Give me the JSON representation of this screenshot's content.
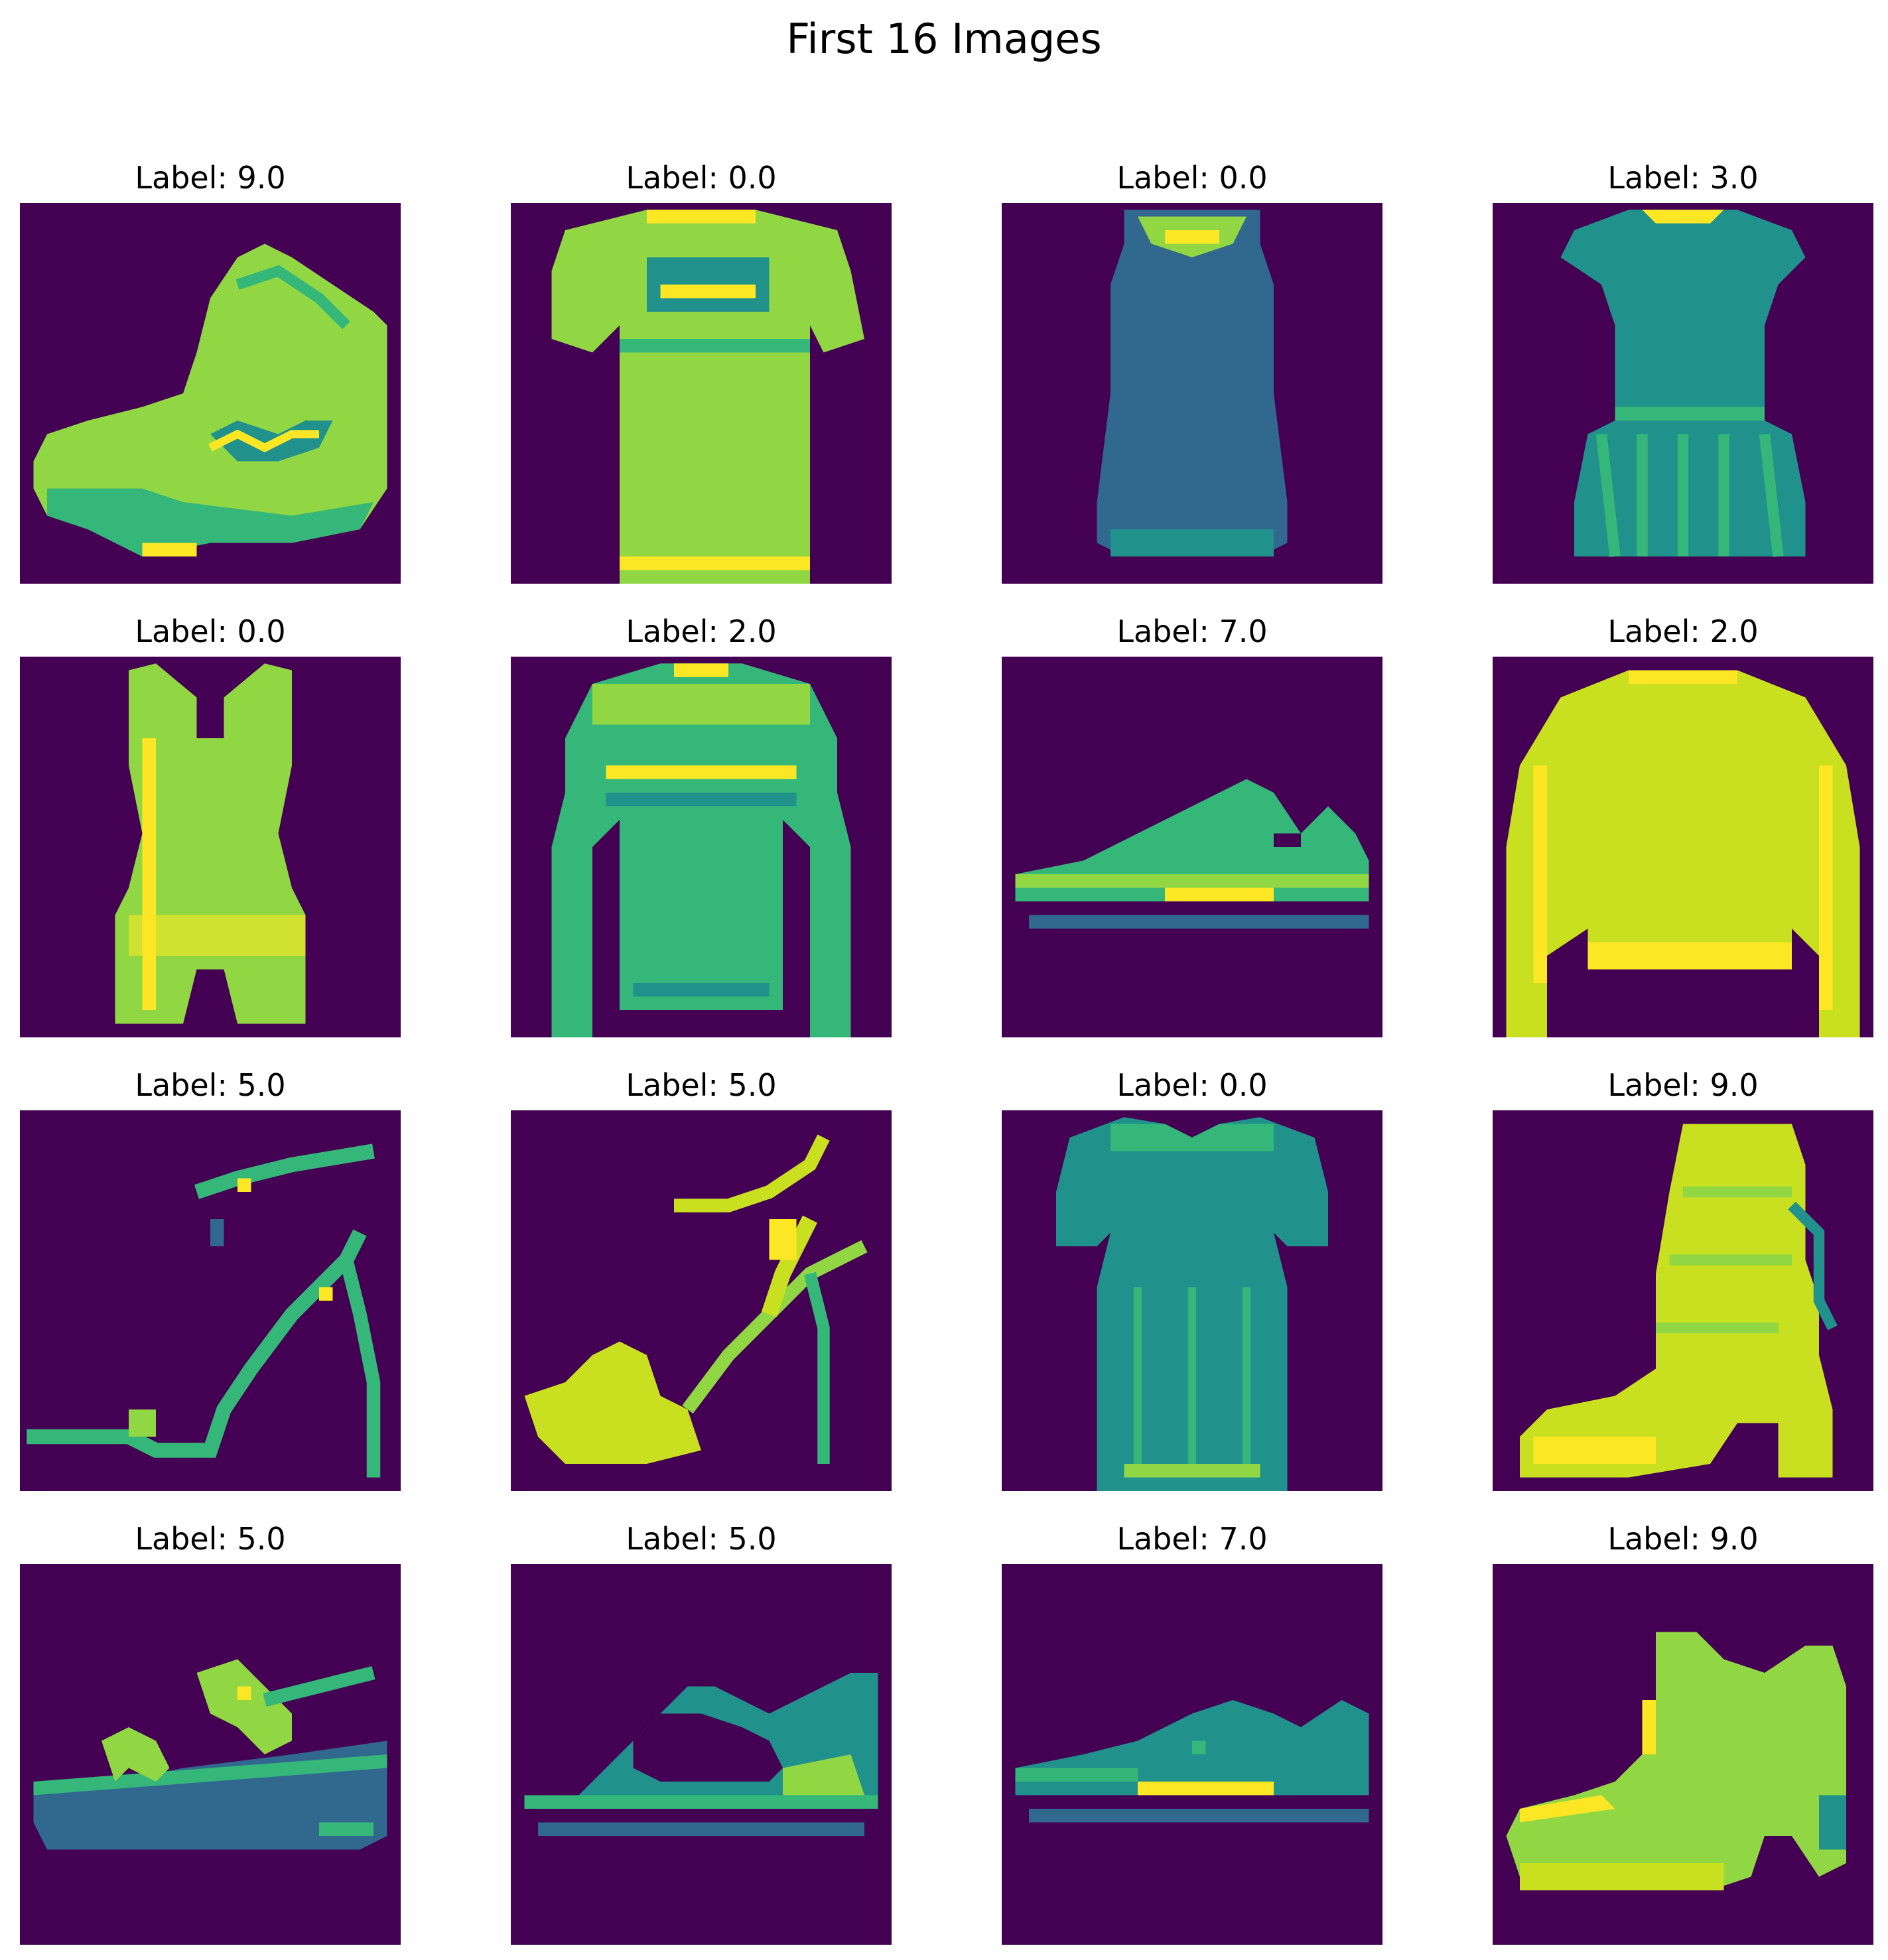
{
  "figure": {
    "title": "First 16 Images"
  },
  "colors": {
    "background": "#440154",
    "dark_teal": "#31688e",
    "teal": "#21918c",
    "green": "#35b779",
    "light_green": "#90d743",
    "yellow": "#fde725"
  },
  "panels": [
    {
      "label": "Label: 9.0",
      "depicts": "ankle boot"
    },
    {
      "label": "Label: 0.0",
      "depicts": "t-shirt"
    },
    {
      "label": "Label: 0.0",
      "depicts": "tank top"
    },
    {
      "label": "Label: 3.0",
      "depicts": "dress"
    },
    {
      "label": "Label: 0.0",
      "depicts": "tank top"
    },
    {
      "label": "Label: 2.0",
      "depicts": "pullover"
    },
    {
      "label": "Label: 7.0",
      "depicts": "sneaker"
    },
    {
      "label": "Label: 2.0",
      "depicts": "pullover"
    },
    {
      "label": "Label: 5.0",
      "depicts": "high-heel sandal"
    },
    {
      "label": "Label: 5.0",
      "depicts": "high-heel sandal"
    },
    {
      "label": "Label: 0.0",
      "depicts": "t-shirt"
    },
    {
      "label": "Label: 9.0",
      "depicts": "ankle boot"
    },
    {
      "label": "Label: 5.0",
      "depicts": "platform sandal"
    },
    {
      "label": "Label: 5.0",
      "depicts": "sandal"
    },
    {
      "label": "Label: 7.0",
      "depicts": "sneaker"
    },
    {
      "label": "Label: 9.0",
      "depicts": "ankle boot"
    }
  ]
}
